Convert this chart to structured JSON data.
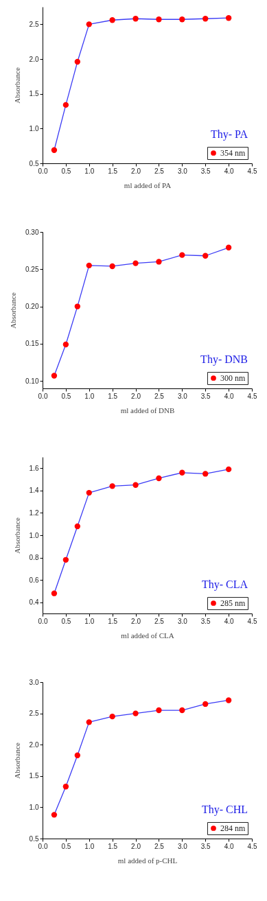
{
  "chart_data": [
    {
      "type": "line",
      "title": "Thy- PA",
      "xlabel": "ml added of PA",
      "ylabel": "Absorbance",
      "x": [
        0.25,
        0.5,
        0.75,
        1,
        1.5,
        2,
        2.5,
        3,
        3.5,
        4
      ],
      "series": [
        {
          "name": "354 nm",
          "color": "#3b3bf5",
          "colors": [
            "#ff0000",
            "#ff0000",
            "#ff0000",
            "#ff0000",
            "#ff0000",
            "#ff0000",
            "#ff0000",
            "#ff0000",
            "#ff0000",
            "#ff0000"
          ],
          "values": [
            0.69,
            1.34,
            1.96,
            2.5,
            2.56,
            2.58,
            2.57,
            2.57,
            2.58,
            2.59
          ]
        }
      ],
      "xlim": [
        0,
        4.5
      ],
      "xticks": [
        {
          "value": 0,
          "label": "0.0"
        },
        0.5,
        {
          "value": 1,
          "label": "1.0"
        },
        1.5,
        {
          "value": 2,
          "label": "2.0"
        },
        2.5,
        {
          "value": 3,
          "label": "3.0"
        },
        3.5,
        {
          "value": 4,
          "label": "4.0"
        },
        4.5
      ],
      "ylim": [
        0.5,
        2.75
      ],
      "yticks": [
        0.5,
        {
          "value": 1,
          "label": "1.0"
        },
        1.5,
        {
          "value": 2,
          "label": "2.0"
        },
        2.5
      ],
      "grid": false,
      "legend": "bottom right",
      "marker": "circle",
      "line_style": "solid"
    },
    {
      "type": "line",
      "title": "Thy- DNB",
      "xlabel": "ml added of DNB",
      "ylabel": "Absorbance",
      "x": [
        0.25,
        0.5,
        0.75,
        1,
        1.5,
        2,
        2.5,
        3,
        3.5,
        4
      ],
      "series": [
        {
          "name": "300 nm",
          "color": "#3b3bf5",
          "colors": [
            "#ff0000",
            "#ff0000",
            "#ff0000",
            "#ff0000",
            "#ff0000",
            "#ff0000",
            "#ff0000",
            "#ff0000",
            "#ff0000",
            "#ff0000"
          ],
          "values": [
            0.107,
            0.149,
            0.2,
            0.255,
            0.254,
            0.258,
            0.26,
            0.269,
            0.268,
            0.279
          ]
        }
      ],
      "xlim": [
        0,
        4.5
      ],
      "xticks": [
        {
          "value": 0,
          "label": "0.0"
        },
        0.5,
        {
          "value": 1,
          "label": "1.0"
        },
        1.5,
        {
          "value": 2,
          "label": "2.0"
        },
        2.5,
        {
          "value": 3,
          "label": "3.0"
        },
        3.5,
        {
          "value": 4,
          "label": "4.0"
        },
        4.5
      ],
      "ylim": [
        0.09,
        0.3
      ],
      "yticks": [
        {
          "value": 0.1,
          "label": "0.10"
        },
        0.15,
        {
          "value": 0.2,
          "label": "0.20"
        },
        0.25,
        {
          "value": 0.3,
          "label": "0.30"
        }
      ],
      "grid": false,
      "legend": "bottom right",
      "marker": "circle",
      "line_style": "solid"
    },
    {
      "type": "line",
      "title": "Thy- CLA",
      "xlabel": "ml added of CLA",
      "ylabel": "Absorbance",
      "x": [
        0.25,
        0.5,
        0.75,
        1,
        1.5,
        2,
        2.5,
        3,
        3.5,
        4
      ],
      "series": [
        {
          "name": "285 nm",
          "color": "#3b3bf5",
          "colors": [
            "#ff0000",
            "#ff0000",
            "#ff0000",
            "#ff0000",
            "#ff0000",
            "#ff0000",
            "#ff0000",
            "#ff0000",
            "#ff0000",
            "#ff0000"
          ],
          "values": [
            0.48,
            0.78,
            1.08,
            1.38,
            1.44,
            1.45,
            1.51,
            1.56,
            1.55,
            1.59
          ]
        }
      ],
      "xlim": [
        0,
        4.5
      ],
      "xticks": [
        {
          "value": 0,
          "label": "0.0"
        },
        0.5,
        {
          "value": 1,
          "label": "1.0"
        },
        1.5,
        {
          "value": 2,
          "label": "2.0"
        },
        2.5,
        {
          "value": 3,
          "label": "3.0"
        },
        3.5,
        {
          "value": 4,
          "label": "4.0"
        },
        4.5
      ],
      "ylim": [
        0.3,
        1.7
      ],
      "yticks": [
        0.4,
        0.6,
        0.8,
        {
          "value": 1,
          "label": "1.0"
        },
        1.2,
        1.4,
        1.6
      ],
      "grid": false,
      "legend": "bottom right",
      "marker": "circle",
      "line_style": "solid"
    },
    {
      "type": "line",
      "title": "Thy- CHL",
      "xlabel": "ml added of p-CHL",
      "ylabel": "Absorbance",
      "x": [
        0.25,
        0.5,
        0.75,
        1,
        1.5,
        2,
        2.5,
        3,
        3.5,
        4
      ],
      "series": [
        {
          "name": "284 nm",
          "color": "#3b3bf5",
          "colors": [
            "#ff0000",
            "#ff0000",
            "#ff0000",
            "#ff0000",
            "#ff0000",
            "#ff0000",
            "#ff0000",
            "#ff0000",
            "#ff0000",
            "#ff0000"
          ],
          "values": [
            0.88,
            1.33,
            1.83,
            2.36,
            2.45,
            2.5,
            2.55,
            2.55,
            2.65,
            2.71
          ]
        }
      ],
      "xlim": [
        0,
        4.5
      ],
      "xticks": [
        {
          "value": 0,
          "label": "0.0"
        },
        0.5,
        {
          "value": 1,
          "label": "1.0"
        },
        1.5,
        {
          "value": 2,
          "label": "2.0"
        },
        2.5,
        {
          "value": 3,
          "label": "3.0"
        },
        3.5,
        {
          "value": 4,
          "label": "4.0"
        },
        4.5
      ],
      "ylim": [
        0.5,
        3
      ],
      "yticks": [
        0.5,
        {
          "value": 1,
          "label": "1.0"
        },
        1.5,
        {
          "value": 2,
          "label": "2.0"
        },
        2.5,
        {
          "value": 3,
          "label": "3.0"
        }
      ],
      "grid": false,
      "legend": "bottom right",
      "marker": "circle",
      "line_style": "solid"
    }
  ]
}
